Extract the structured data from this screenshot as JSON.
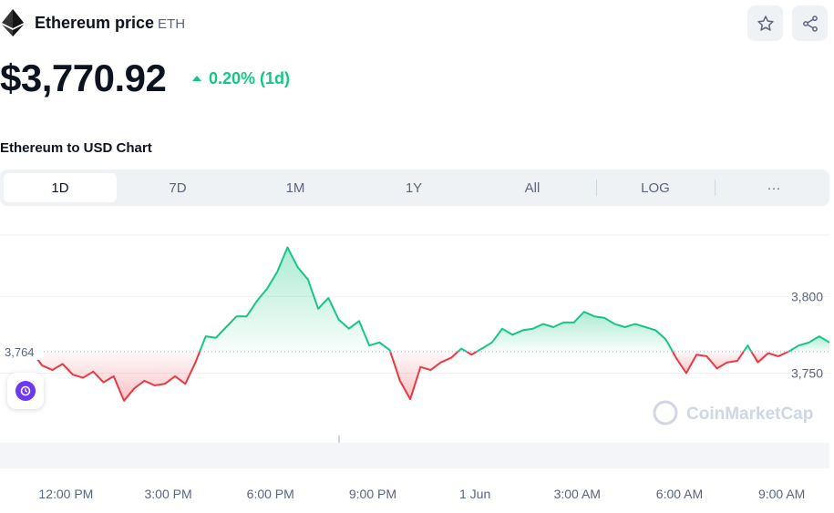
{
  "header": {
    "coin_name": "Ethereum price",
    "coin_symbol": "ETH",
    "icons": {
      "logo": "ethereum-logo-icon",
      "star": "star-icon",
      "share": "share-icon"
    }
  },
  "price": {
    "value": "$3,770.92",
    "change": "0.20% (1d)",
    "change_color": "#16c784"
  },
  "chart_title": "Ethereum to USD Chart",
  "tabs": {
    "items": [
      "1D",
      "7D",
      "1M",
      "1Y",
      "All",
      "LOG",
      "···"
    ],
    "active": "1D"
  },
  "colors": {
    "up": "#16c784",
    "down": "#ea3943",
    "accent": "#6c38f5"
  },
  "chart_data": {
    "type": "area",
    "baseline_label": "3,764",
    "baseline": 3764,
    "watermark": "CoinMarketCap",
    "y_ticks": [
      "3,800",
      "3,750"
    ],
    "y_tick_values": [
      3800,
      3750
    ],
    "ylim": [
      3720,
      3840
    ],
    "x_ticks": [
      "12:00 PM",
      "3:00 PM",
      "6:00 PM",
      "9:00 PM",
      "1 Jun",
      "3:00 AM",
      "6:00 AM",
      "9:00 AM"
    ],
    "x_tick_hours": [
      1,
      4,
      7,
      10,
      13,
      16,
      19,
      22
    ],
    "xlim": [
      0,
      23.4
    ],
    "grid": true,
    "x": [
      0,
      0.3,
      0.6,
      0.9,
      1.2,
      1.5,
      1.8,
      2.1,
      2.4,
      2.7,
      3.0,
      3.3,
      3.6,
      3.9,
      4.2,
      4.5,
      4.8,
      5.1,
      5.4,
      5.7,
      6.0,
      6.3,
      6.6,
      6.9,
      7.2,
      7.5,
      7.8,
      8.1,
      8.4,
      8.7,
      9.0,
      9.3,
      9.6,
      9.9,
      10.2,
      10.5,
      10.8,
      11.1,
      11.4,
      11.7,
      12.0,
      12.3,
      12.6,
      12.9,
      13.2,
      13.5,
      13.8,
      14.1,
      14.4,
      14.7,
      15.0,
      15.3,
      15.6,
      15.9,
      16.2,
      16.5,
      16.8,
      17.1,
      17.4,
      17.7,
      18.0,
      18.3,
      18.6,
      18.9,
      19.2,
      19.5,
      19.8,
      20.1,
      20.4,
      20.7,
      21.0,
      21.3,
      21.6,
      21.9,
      22.2,
      22.5,
      22.8,
      23.1,
      23.4
    ],
    "y": [
      3764,
      3755,
      3752,
      3756,
      3749,
      3747,
      3751,
      3744,
      3748,
      3732,
      3740,
      3745,
      3742,
      3743,
      3748,
      3743,
      3757,
      3774,
      3773,
      3780,
      3787,
      3787,
      3797,
      3805,
      3816,
      3832,
      3819,
      3811,
      3792,
      3799,
      3785,
      3779,
      3784,
      3768,
      3770,
      3765,
      3745,
      3733,
      3754,
      3752,
      3757,
      3760,
      3766,
      3762,
      3766,
      3770,
      3779,
      3775,
      3778,
      3779,
      3782,
      3780,
      3783,
      3783,
      3790,
      3787,
      3786,
      3782,
      3780,
      3782,
      3780,
      3778,
      3772,
      3760,
      3750,
      3762,
      3761,
      3753,
      3757,
      3758,
      3768,
      3757,
      3763,
      3761,
      3764,
      3768,
      3770,
      3774,
      3770
    ]
  }
}
